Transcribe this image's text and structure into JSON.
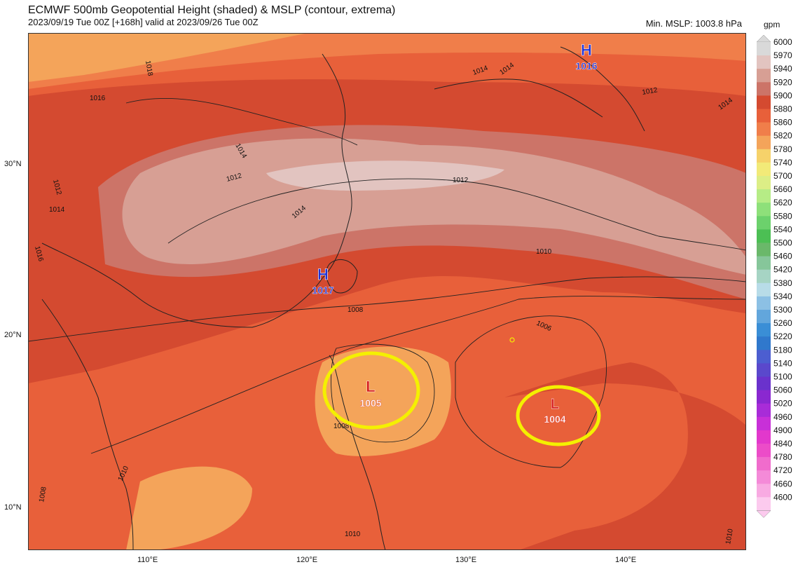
{
  "header": {
    "title": "ECMWF 500mb Geopotential Height (shaded) & MSLP (contour, extrema)",
    "subtitle": "2023/09/19 Tue 00Z [+168h] valid at 2023/09/26 Tue 00Z",
    "min_mslp": "Min. MSLP: 1003.8 hPa"
  },
  "axes": {
    "lat_labels": [
      "30°N",
      "20°N",
      "10°N"
    ],
    "lon_labels": [
      "110°E",
      "120°E",
      "130°E",
      "140°E"
    ]
  },
  "colorbar": {
    "unit": "gpm",
    "levels": [
      "6000",
      "5970",
      "5940",
      "5920",
      "5900",
      "5880",
      "5860",
      "5820",
      "5780",
      "5740",
      "5700",
      "5660",
      "5620",
      "5580",
      "5540",
      "5500",
      "5460",
      "5420",
      "5380",
      "5340",
      "5300",
      "5260",
      "5220",
      "5180",
      "5140",
      "5100",
      "5060",
      "5020",
      "4960",
      "4900",
      "4840",
      "4780",
      "4720",
      "4660",
      "4600"
    ],
    "colors": [
      "#d9d9d9",
      "#e2c4c0",
      "#d79f94",
      "#cc7468",
      "#d44a30",
      "#e8603a",
      "#f07e4a",
      "#f4a45a",
      "#f6d26a",
      "#f2ea78",
      "#dcee86",
      "#b6ec86",
      "#8ee07a",
      "#6cd16c",
      "#4cbf54",
      "#6ab86a",
      "#86c69a",
      "#a6d4c4",
      "#b8dce8",
      "#8cc0e4",
      "#62a6dc",
      "#3a8ed6",
      "#3078cc",
      "#4c5ed0",
      "#5a48cc",
      "#6a32cc",
      "#8a28d0",
      "#a82cd8",
      "#c830d8",
      "#e238cc",
      "#ec4cc8",
      "#f06ccc",
      "#f48ad8",
      "#f8aae2",
      "#fccaee"
    ]
  },
  "extrema": [
    {
      "type": "H",
      "value": "1016"
    },
    {
      "type": "H",
      "value": "1017"
    },
    {
      "type": "L",
      "value": "1005"
    },
    {
      "type": "L",
      "value": "1004"
    }
  ],
  "isobar_labels": [
    "1018",
    "1016",
    "1014",
    "1012",
    "1012",
    "1014",
    "1016",
    "1014",
    "1014",
    "1014",
    "1012",
    "1014",
    "1012",
    "1010",
    "1008",
    "1006",
    "1008",
    "1010",
    "1008",
    "1010",
    "1010"
  ],
  "colors": {
    "extrema_high": "#1c2fd6",
    "extrema_low": "#d61c1c",
    "highlight_circle": "#f4f000"
  }
}
